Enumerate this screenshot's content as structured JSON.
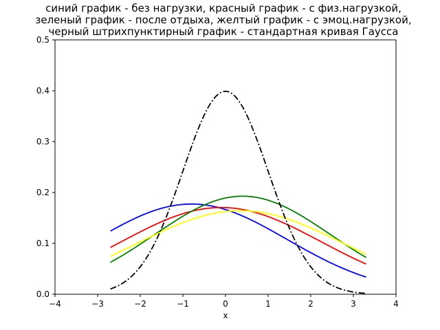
{
  "chart_data": {
    "type": "line",
    "title_lines": [
      "синий график - без нагрузки, красный график - с физ.нагрузкой,",
      "зеленый график - после отдыха, желтый график - с эмоц.нагрузкой,",
      "черный штрихпунктирный график - стандартная кривая Гаусса"
    ],
    "xlabel": "x",
    "ylabel": "",
    "xlim": [
      -4,
      4
    ],
    "ylim": [
      0,
      0.5
    ],
    "xticks": [
      "−4",
      "−3",
      "−2",
      "−1",
      "0",
      "1",
      "2",
      "3",
      "4"
    ],
    "yticks": [
      "0.0",
      "0.1",
      "0.2",
      "0.3",
      "0.4",
      "0.5"
    ],
    "grid": false,
    "legend": "none",
    "x_range": [
      -2.7,
      3.3
    ],
    "series": [
      {
        "color": "#0000ff",
        "line_style": "solid",
        "distribution": "normal",
        "mean": -0.8,
        "sd": 2.25
      },
      {
        "color": "#ff0000",
        "line_style": "solid",
        "distribution": "normal",
        "mean": -0.1,
        "sd": 2.34
      },
      {
        "color": "#008000",
        "line_style": "solid",
        "distribution": "normal",
        "mean": 0.4,
        "sd": 2.07
      },
      {
        "color": "#ffff00",
        "line_style": "solid",
        "distribution": "normal",
        "mean": 0.35,
        "sd": 2.43
      },
      {
        "color": "#000000",
        "line_style": "dashdot",
        "distribution": "normal",
        "mean": 0,
        "sd": 1
      }
    ]
  }
}
